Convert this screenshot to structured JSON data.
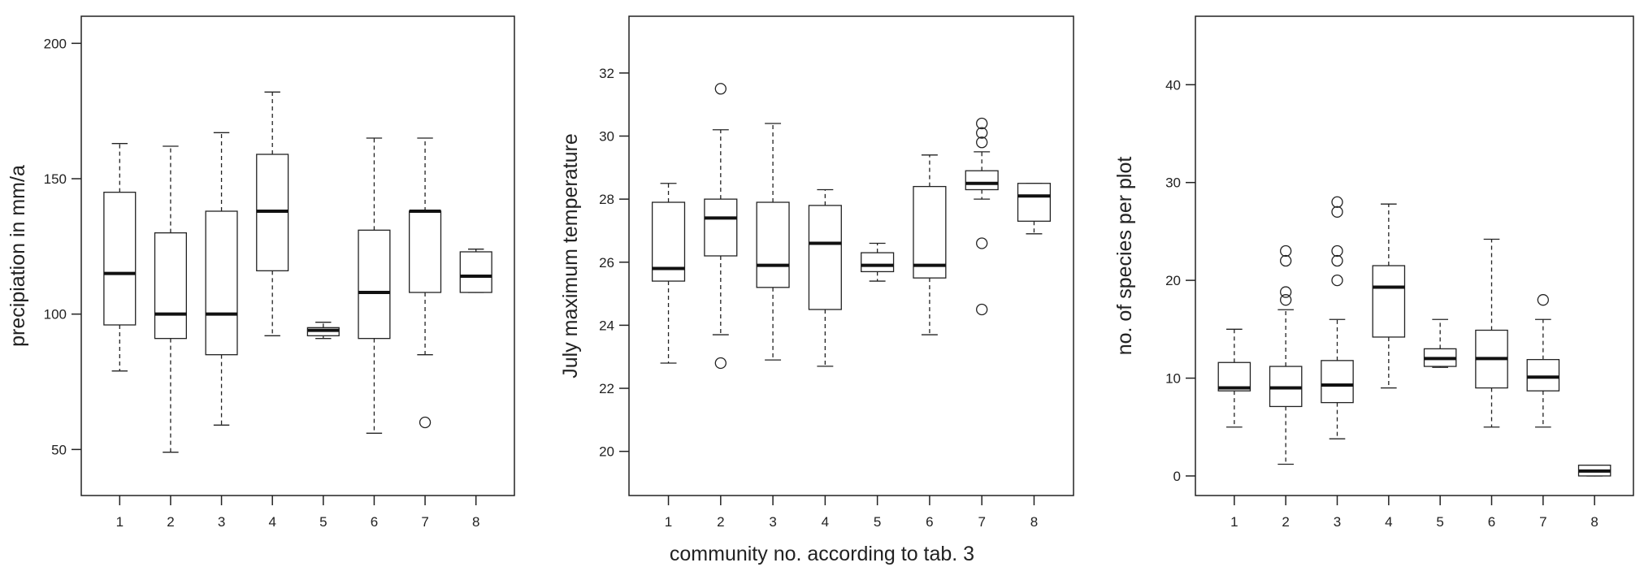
{
  "figure": {
    "xlabel": "community no. according to tab. 3"
  },
  "chart_data": [
    {
      "type": "boxplot",
      "title": "",
      "xlabel": "",
      "ylabel": "precipiation in mm/a",
      "categories": [
        "1",
        "2",
        "3",
        "4",
        "5",
        "6",
        "7",
        "8"
      ],
      "ylim": [
        33,
        210
      ],
      "yticks": [
        50,
        100,
        150,
        200
      ],
      "ytick_labels": [
        "50",
        "100",
        "150",
        "200"
      ],
      "boxes": [
        {
          "min": 79,
          "q1": 96,
          "median": 115,
          "q3": 145,
          "max": 163,
          "outliers": []
        },
        {
          "min": 49,
          "q1": 91,
          "median": 100,
          "q3": 130,
          "max": 162,
          "outliers": []
        },
        {
          "min": 59,
          "q1": 85,
          "median": 100,
          "q3": 138,
          "max": 167,
          "outliers": []
        },
        {
          "min": 92,
          "q1": 116,
          "median": 138,
          "q3": 159,
          "max": 182,
          "outliers": []
        },
        {
          "min": 91,
          "q1": 92,
          "median": 94,
          "q3": 95,
          "max": 97,
          "outliers": []
        },
        {
          "min": 56,
          "q1": 91,
          "median": 108,
          "q3": 131,
          "max": 165,
          "outliers": []
        },
        {
          "min": 85,
          "q1": 108,
          "median": 138,
          "q3": 138,
          "max": 165,
          "outliers": [
            60
          ]
        },
        {
          "min": 108,
          "q1": 108,
          "median": 114,
          "q3": 123,
          "max": 124,
          "outliers": []
        }
      ]
    },
    {
      "type": "boxplot",
      "title": "",
      "xlabel": "",
      "ylabel": "July maximum temperature",
      "categories": [
        "1",
        "2",
        "3",
        "4",
        "5",
        "6",
        "7",
        "8"
      ],
      "ylim": [
        18.6,
        33.8
      ],
      "yticks": [
        20,
        22,
        24,
        26,
        28,
        30,
        32
      ],
      "ytick_labels": [
        "20",
        "22",
        "24",
        "26",
        "28",
        "30",
        "32"
      ],
      "boxes": [
        {
          "min": 22.8,
          "q1": 25.4,
          "median": 25.8,
          "q3": 27.9,
          "max": 28.5,
          "outliers": []
        },
        {
          "min": 23.7,
          "q1": 26.2,
          "median": 27.4,
          "q3": 28.0,
          "max": 30.2,
          "outliers": [
            31.5,
            22.8
          ]
        },
        {
          "min": 22.9,
          "q1": 25.2,
          "median": 25.9,
          "q3": 27.9,
          "max": 30.4,
          "outliers": []
        },
        {
          "min": 22.7,
          "q1": 24.5,
          "median": 26.6,
          "q3": 27.8,
          "max": 28.3,
          "outliers": []
        },
        {
          "min": 25.4,
          "q1": 25.7,
          "median": 25.9,
          "q3": 26.3,
          "max": 26.6,
          "outliers": []
        },
        {
          "min": 23.7,
          "q1": 25.5,
          "median": 25.9,
          "q3": 28.4,
          "max": 29.4,
          "outliers": []
        },
        {
          "min": 28.0,
          "q1": 28.3,
          "median": 28.5,
          "q3": 28.9,
          "max": 29.5,
          "outliers": [
            30.4,
            30.1,
            29.8,
            26.6,
            24.5
          ]
        },
        {
          "min": 26.9,
          "q1": 27.3,
          "median": 28.1,
          "q3": 28.5,
          "max": 28.5,
          "outliers": []
        }
      ]
    },
    {
      "type": "boxplot",
      "title": "",
      "xlabel": "",
      "ylabel": "no. of species per plot",
      "categories": [
        "1",
        "2",
        "3",
        "4",
        "5",
        "6",
        "7",
        "8"
      ],
      "ylim": [
        -2,
        47
      ],
      "yticks": [
        0,
        10,
        20,
        30,
        40
      ],
      "ytick_labels": [
        "0",
        "10",
        "20",
        "30",
        "40"
      ],
      "boxes": [
        {
          "min": 5,
          "q1": 8.7,
          "median": 9,
          "q3": 11.6,
          "max": 15,
          "outliers": []
        },
        {
          "min": 1.2,
          "q1": 7.1,
          "median": 9,
          "q3": 11.2,
          "max": 17,
          "outliers": [
            23,
            22,
            18.8,
            18
          ]
        },
        {
          "min": 3.8,
          "q1": 7.5,
          "median": 9.3,
          "q3": 11.8,
          "max": 16,
          "outliers": [
            28,
            27,
            23,
            22,
            20
          ]
        },
        {
          "min": 9,
          "q1": 14.2,
          "median": 19.3,
          "q3": 21.5,
          "max": 27.8,
          "outliers": []
        },
        {
          "min": 11.1,
          "q1": 11.2,
          "median": 12,
          "q3": 13,
          "max": 16,
          "outliers": []
        },
        {
          "min": 5,
          "q1": 9,
          "median": 12,
          "q3": 14.9,
          "max": 24.2,
          "outliers": []
        },
        {
          "min": 5,
          "q1": 8.7,
          "median": 10.1,
          "q3": 11.9,
          "max": 16,
          "outliers": [
            18
          ]
        },
        {
          "min": 0,
          "q1": 0,
          "median": 0.5,
          "q3": 1.1,
          "max": 1.1,
          "outliers": []
        }
      ]
    }
  ]
}
